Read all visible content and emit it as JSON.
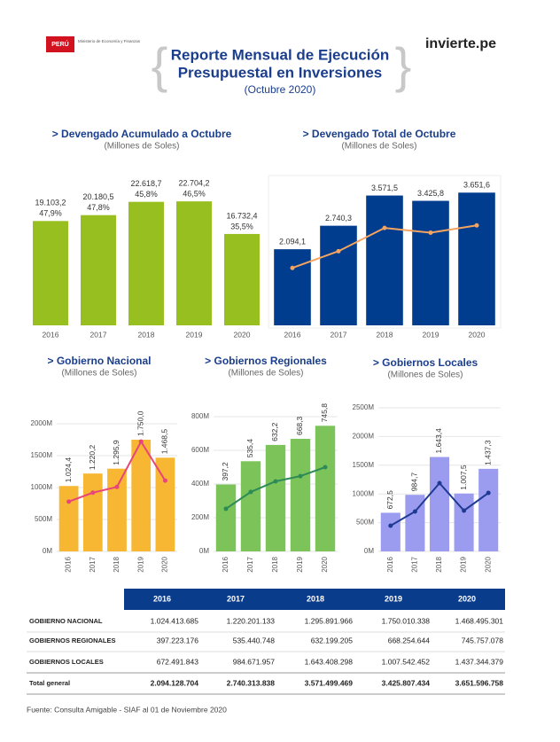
{
  "header": {
    "logo": "PERÚ",
    "ministry": "Ministerio de Economía y Finanzas",
    "title": [
      "Reporte Mensual de Ejecución",
      "Presupuestal en Inversiones"
    ],
    "subtitle": "(Octubre 2020)",
    "brand": "invierte.pe"
  },
  "chart_data": [
    {
      "type": "bar",
      "title": "> Devengado Acumulado a Octubre",
      "subtitle": "(Millones de Soles)",
      "categories": [
        "2016",
        "2017",
        "2018",
        "2019",
        "2020"
      ],
      "values": [
        19103.2,
        20180.5,
        22618.7,
        22704.2,
        16732.4
      ],
      "value_labels": [
        "19.103,2",
        "20.180,5",
        "22.618,7",
        "22.704,2",
        "16.732,4"
      ],
      "percent_labels": [
        "47,9%",
        "47,8%",
        "45,8%",
        "46,5%",
        "35,5%"
      ],
      "color": "#97bf1f",
      "ylim": [
        0,
        25000
      ]
    },
    {
      "type": "bar",
      "title": "> Devengado Total de Octubre",
      "subtitle": "(Millones de Soles)",
      "categories": [
        "2016",
        "2017",
        "2018",
        "2019",
        "2020"
      ],
      "values": [
        2094.1,
        2740.3,
        3571.5,
        3425.8,
        3651.6
      ],
      "value_labels": [
        "2.094,1",
        "2.740,3",
        "3.571,5",
        "3.425,8",
        "3.651,6"
      ],
      "color": "#003d8f",
      "line_values": [
        1580,
        2040,
        2680,
        2550,
        2750
      ],
      "line_color": "#f4a460",
      "ylim": [
        0,
        4000
      ]
    },
    {
      "type": "bar",
      "title": "> Gobierno Nacional",
      "subtitle": "(Millones de Soles)",
      "categories": [
        "2016",
        "2017",
        "2018",
        "2019",
        "2020"
      ],
      "values": [
        1024.4,
        1220.2,
        1295.9,
        1750.0,
        1468.5
      ],
      "value_labels": [
        "1.024,4",
        "1.220,2",
        "1.295,9",
        "1.750,0",
        "1.468,5"
      ],
      "color": "#f7b733",
      "line_values": [
        780,
        920,
        1010,
        1720,
        1110
      ],
      "line_color": "#e8457a",
      "ylim": [
        0,
        2000
      ],
      "yticks": [
        {
          "value": 0,
          "label": "0M"
        },
        {
          "value": 500,
          "label": "500M"
        },
        {
          "value": 1000,
          "label": "1000M"
        },
        {
          "value": 1500,
          "label": "1500M"
        },
        {
          "value": 2000,
          "label": "2000M"
        }
      ],
      "grid": true
    },
    {
      "type": "bar",
      "title": "> Gobiernos Regionales",
      "subtitle": "(Millones de Soles)",
      "categories": [
        "2016",
        "2017",
        "2018",
        "2019",
        "2020"
      ],
      "values": [
        397.2,
        535.4,
        632.2,
        668.3,
        745.8
      ],
      "value_labels": [
        "397,2",
        "535,4",
        "632,2",
        "668,3",
        "745,8"
      ],
      "color": "#7cc35a",
      "line_values": [
        253,
        353,
        416,
        447,
        500
      ],
      "line_color": "#2e8b57",
      "ylim": [
        0,
        800
      ],
      "yticks": [
        {
          "value": 0,
          "label": "0M"
        },
        {
          "value": 200,
          "label": "200M"
        },
        {
          "value": 400,
          "label": "400M"
        },
        {
          "value": 600,
          "label": "600M"
        },
        {
          "value": 800,
          "label": "800M"
        }
      ],
      "grid": true
    },
    {
      "type": "bar",
      "title": "> Gobiernos Locales",
      "subtitle": "(Millones de Soles)",
      "categories": [
        "2016",
        "2017",
        "2018",
        "2019",
        "2020"
      ],
      "values": [
        672.5,
        984.7,
        1643.4,
        1007.5,
        1437.3
      ],
      "value_labels": [
        "672,5",
        "984,7",
        "1.643,4",
        "1.007,5",
        "1.437,3"
      ],
      "color": "#9b9cf0",
      "line_values": [
        448,
        694,
        1188,
        710,
        1018
      ],
      "line_color": "#1f3a93",
      "ylim": [
        0,
        2500
      ],
      "yticks": [
        {
          "value": 0,
          "label": "0M"
        },
        {
          "value": 500,
          "label": "500M"
        },
        {
          "value": 1000,
          "label": "1000M"
        },
        {
          "value": 1500,
          "label": "1500M"
        },
        {
          "value": 2000,
          "label": "2000M"
        },
        {
          "value": 2500,
          "label": "2500M"
        }
      ],
      "grid": true
    }
  ],
  "table": {
    "header": [
      "2016",
      "2017",
      "2018",
      "2019",
      "2020"
    ],
    "rows": [
      [
        "GOBIERNO NACIONAL",
        "1.024.413.685",
        "1.220.201.133",
        "1.295.891.966",
        "1.750.010.338",
        "1.468.495.301"
      ],
      [
        "GOBIERNOS REGIONALES",
        "397.223.176",
        "535.440.748",
        "632.199.205",
        "668.254.644",
        "745.757.078"
      ],
      [
        "GOBIERNOS LOCALES",
        "672.491.843",
        "984.671.957",
        "1.643.408.298",
        "1.007.542.452",
        "1.437.344.379"
      ],
      [
        "Total general",
        "2.094.128.704",
        "2.740.313.838",
        "3.571.499.469",
        "3.425.807.434",
        "3.651.596.758"
      ]
    ]
  },
  "footer": "Fuente: Consulta Amigable - SIAF  al 01 de Noviembre 2020"
}
